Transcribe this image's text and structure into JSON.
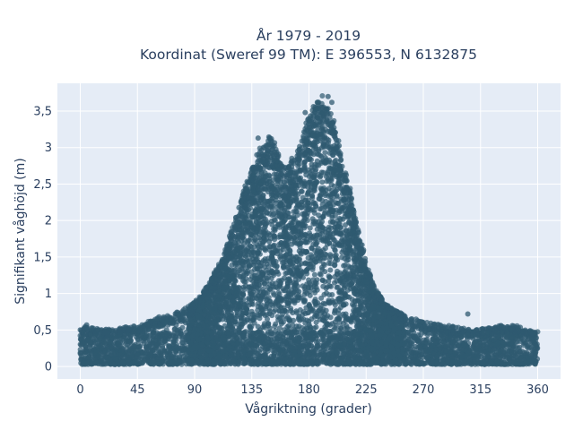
{
  "chart_data": {
    "type": "scatter",
    "title_line1": "År 1979 - 2019",
    "title_line2": "Koordinat (Sweref 99 TM): E 396553, N 6132875",
    "xlabel": "Vågriktning (grader)",
    "ylabel": "Signifikant våghöjd (m)",
    "xlim": [
      -18,
      378
    ],
    "ylim": [
      -0.17,
      3.88
    ],
    "xticks": [
      0,
      45,
      90,
      135,
      180,
      225,
      270,
      315,
      360
    ],
    "xtick_labels": [
      "0",
      "45",
      "90",
      "135",
      "180",
      "225",
      "270",
      "315",
      "360"
    ],
    "yticks": [
      0,
      0.5,
      1,
      1.5,
      2,
      2.5,
      3,
      3.5
    ],
    "ytick_labels": [
      "0",
      "0,5",
      "1",
      "1,5",
      "2",
      "2,5",
      "3",
      "3,5"
    ],
    "grid": true,
    "background": "#e5ecf6",
    "marker_color": "#2f5a70",
    "x_range_observed": [
      0,
      360
    ],
    "y_range_observed": [
      0.02,
      3.7
    ],
    "envelope": {
      "x": [
        0,
        20,
        45,
        60,
        80,
        95,
        110,
        120,
        130,
        140,
        150,
        160,
        170,
        180,
        190,
        200,
        210,
        220,
        230,
        240,
        255,
        270,
        290,
        310,
        330,
        345,
        360
      ],
      "y_max": [
        0.55,
        0.5,
        0.55,
        0.65,
        0.75,
        0.95,
        1.4,
        1.9,
        2.5,
        2.9,
        3.15,
        2.7,
        2.85,
        3.5,
        3.7,
        3.3,
        2.6,
        1.75,
        1.15,
        0.85,
        0.7,
        0.6,
        0.55,
        0.5,
        0.55,
        0.55,
        0.45
      ]
    },
    "highlighted_points": [
      {
        "x": 140,
        "y": 3.13
      },
      {
        "x": 177,
        "y": 3.48
      },
      {
        "x": 195,
        "y": 3.7
      },
      {
        "x": 198,
        "y": 3.62
      },
      {
        "x": 190,
        "y": 3.55
      },
      {
        "x": 185,
        "y": 3.3
      },
      {
        "x": 97,
        "y": 1.02
      },
      {
        "x": 305,
        "y": 0.72
      },
      {
        "x": 340,
        "y": 0.56
      },
      {
        "x": 5,
        "y": 0.57
      },
      {
        "x": 62,
        "y": 0.68
      }
    ]
  }
}
